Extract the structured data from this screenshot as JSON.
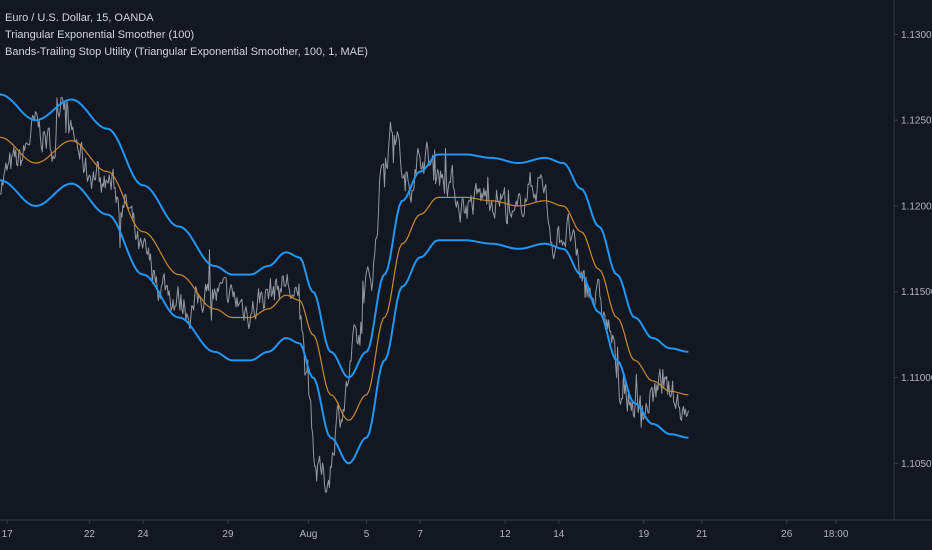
{
  "legend": {
    "symbol_line": "Euro / U.S. Dollar, 15, OANDA",
    "indicator_1": "Triangular Exponential Smoother (100)",
    "indicator_2": "Bands-Trailing Stop Utility (Triangular Exponential Smoother, 100, 1, MAE)"
  },
  "colors": {
    "background": "#131722",
    "price": "#9598a1",
    "smoother": "#c98a2c",
    "bands": "#2196f3",
    "axis_text": "#b2b5be",
    "axis_line": "#363a45"
  },
  "chart_data": {
    "type": "line",
    "ylim": [
      1.1017,
      1.132
    ],
    "x_range": [
      0,
      100
    ],
    "y_ticks": [
      "1.13000",
      "1.12500",
      "1.12000",
      "1.11500",
      "1.11000",
      "1.10500"
    ],
    "y_tick_values": [
      1.13,
      1.125,
      1.12,
      1.115,
      1.11,
      1.105
    ],
    "x_ticks": [
      "17",
      "22",
      "24",
      "29",
      "Aug",
      "5",
      "7",
      "12",
      "14",
      "19",
      "21",
      "26",
      "18:00"
    ],
    "x_tick_positions": [
      0.8,
      10,
      16,
      25.5,
      34.5,
      41,
      47,
      56.5,
      62.5,
      72,
      78.5,
      88,
      93.5
    ],
    "series": [
      {
        "name": "",
        "role": "price",
        "x": [
          0,
          2,
          4,
          6,
          7,
          8,
          10,
          12,
          14,
          16,
          18,
          20,
          21.5,
          23,
          24,
          26,
          28,
          30,
          32,
          33.5,
          34.5,
          35.5,
          36.5,
          38,
          40,
          41.5,
          43,
          44,
          45.5,
          47,
          48.5,
          50,
          52,
          54,
          56,
          57.5,
          59,
          60.5,
          62,
          63.5,
          65,
          66,
          67,
          68,
          69.5,
          71,
          72,
          73,
          74,
          75,
          76,
          77
        ],
        "values": [
          1.1215,
          1.1225,
          1.1245,
          1.1235,
          1.127,
          1.124,
          1.122,
          1.1215,
          1.12,
          1.117,
          1.1155,
          1.1145,
          1.114,
          1.115,
          1.1148,
          1.1145,
          1.114,
          1.115,
          1.1155,
          1.114,
          1.109,
          1.1045,
          1.104,
          1.108,
          1.112,
          1.116,
          1.123,
          1.1245,
          1.121,
          1.123,
          1.1225,
          1.1215,
          1.12,
          1.1205,
          1.1205,
          1.119,
          1.121,
          1.1215,
          1.118,
          1.1185,
          1.116,
          1.115,
          1.1145,
          1.113,
          1.109,
          1.1085,
          1.108,
          1.109,
          1.1095,
          1.109,
          1.1085,
          1.108
        ]
      },
      {
        "name": "",
        "role": "smoother",
        "x": [
          0,
          4,
          8,
          12,
          16,
          20,
          24,
          26,
          28,
          30,
          32,
          33.5,
          35,
          37,
          39,
          41,
          43,
          45,
          47,
          49,
          52,
          55,
          58,
          61,
          63,
          65,
          67,
          69,
          71,
          73,
          75,
          77
        ],
        "values": [
          1.124,
          1.1225,
          1.1238,
          1.122,
          1.1185,
          1.116,
          1.114,
          1.1135,
          1.1135,
          1.114,
          1.1148,
          1.1145,
          1.1125,
          1.109,
          1.1075,
          1.109,
          1.1135,
          1.1178,
          1.1195,
          1.1205,
          1.1205,
          1.1203,
          1.12,
          1.1203,
          1.12,
          1.1185,
          1.1163,
          1.1135,
          1.111,
          1.1098,
          1.1092,
          1.109
        ]
      },
      {
        "name": "",
        "role": "upper-band",
        "x": [
          0,
          4,
          8,
          12,
          16,
          20,
          24,
          26,
          28,
          30,
          32,
          33.5,
          35,
          37,
          39,
          41,
          43,
          45,
          47,
          49,
          52,
          55,
          58,
          61,
          63,
          65,
          67,
          69,
          71,
          73,
          75,
          77
        ],
        "values": [
          1.1265,
          1.125,
          1.1262,
          1.1245,
          1.1212,
          1.1188,
          1.1165,
          1.116,
          1.116,
          1.1165,
          1.1173,
          1.117,
          1.115,
          1.1115,
          1.11,
          1.1115,
          1.116,
          1.1203,
          1.122,
          1.123,
          1.123,
          1.1228,
          1.1225,
          1.1228,
          1.1225,
          1.121,
          1.1188,
          1.116,
          1.1135,
          1.1123,
          1.1117,
          1.1115
        ]
      },
      {
        "name": "",
        "role": "lower-band",
        "x": [
          0,
          4,
          8,
          12,
          16,
          20,
          24,
          26,
          28,
          30,
          32,
          33.5,
          35,
          37,
          39,
          41,
          43,
          45,
          47,
          49,
          52,
          55,
          58,
          61,
          63,
          65,
          67,
          69,
          71,
          73,
          75,
          77
        ],
        "values": [
          1.1215,
          1.12,
          1.1213,
          1.1195,
          1.116,
          1.1135,
          1.1115,
          1.111,
          1.111,
          1.1115,
          1.1123,
          1.112,
          1.11,
          1.1065,
          1.105,
          1.1065,
          1.111,
          1.1153,
          1.117,
          1.118,
          1.118,
          1.1178,
          1.1175,
          1.1178,
          1.1175,
          1.116,
          1.1138,
          1.111,
          1.1085,
          1.1073,
          1.1067,
          1.1065
        ]
      }
    ]
  }
}
